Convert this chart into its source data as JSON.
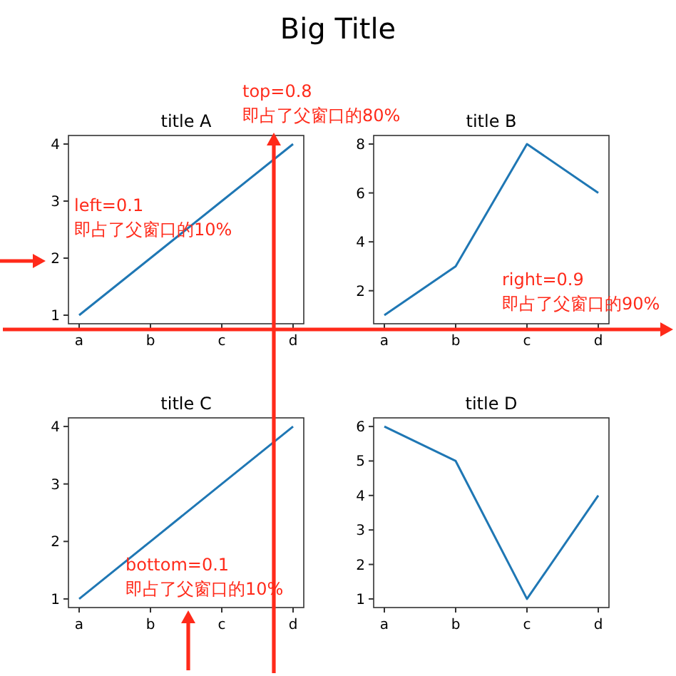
{
  "chart_data": [
    {
      "type": "other",
      "title": "Big Title"
    },
    {
      "type": "line",
      "title": "title A",
      "categories": [
        "a",
        "b",
        "c",
        "d"
      ],
      "series": [
        {
          "color": "#1f77b4",
          "values": [
            1,
            2,
            3,
            4
          ]
        }
      ],
      "ylim": [
        0.85,
        4.15
      ],
      "yticks": [
        1,
        2,
        3,
        4
      ],
      "annotations": [
        "top=0.8\n即占了父窗口的80%",
        "left=0.1\n即占了父窗口的10%"
      ]
    },
    {
      "type": "line",
      "title": "title B",
      "categories": [
        "a",
        "b",
        "c",
        "d"
      ],
      "series": [
        {
          "color": "#1f77b4",
          "values": [
            1,
            3,
            8,
            6
          ]
        }
      ],
      "ylim": [
        0.65,
        8.35
      ],
      "yticks": [
        2,
        4,
        6,
        8
      ],
      "annotations": [
        "right=0.9\n即占了父窗口的90%"
      ]
    },
    {
      "type": "line",
      "title": "title C",
      "categories": [
        "a",
        "b",
        "c",
        "d"
      ],
      "series": [
        {
          "color": "#1f77b4",
          "values": [
            1,
            2,
            3,
            4
          ]
        }
      ],
      "ylim": [
        0.85,
        4.15
      ],
      "yticks": [
        1,
        2,
        3,
        4
      ],
      "annotations": [
        "bottom=0.1\n即占了父窗口的10%"
      ]
    },
    {
      "type": "line",
      "title": "title D",
      "categories": [
        "a",
        "b",
        "c",
        "d"
      ],
      "series": [
        {
          "color": "#1f77b4",
          "values": [
            6,
            5,
            1,
            4
          ]
        }
      ],
      "ylim": [
        0.75,
        6.25
      ],
      "yticks": [
        1,
        2,
        3,
        4,
        5,
        6
      ]
    }
  ]
}
